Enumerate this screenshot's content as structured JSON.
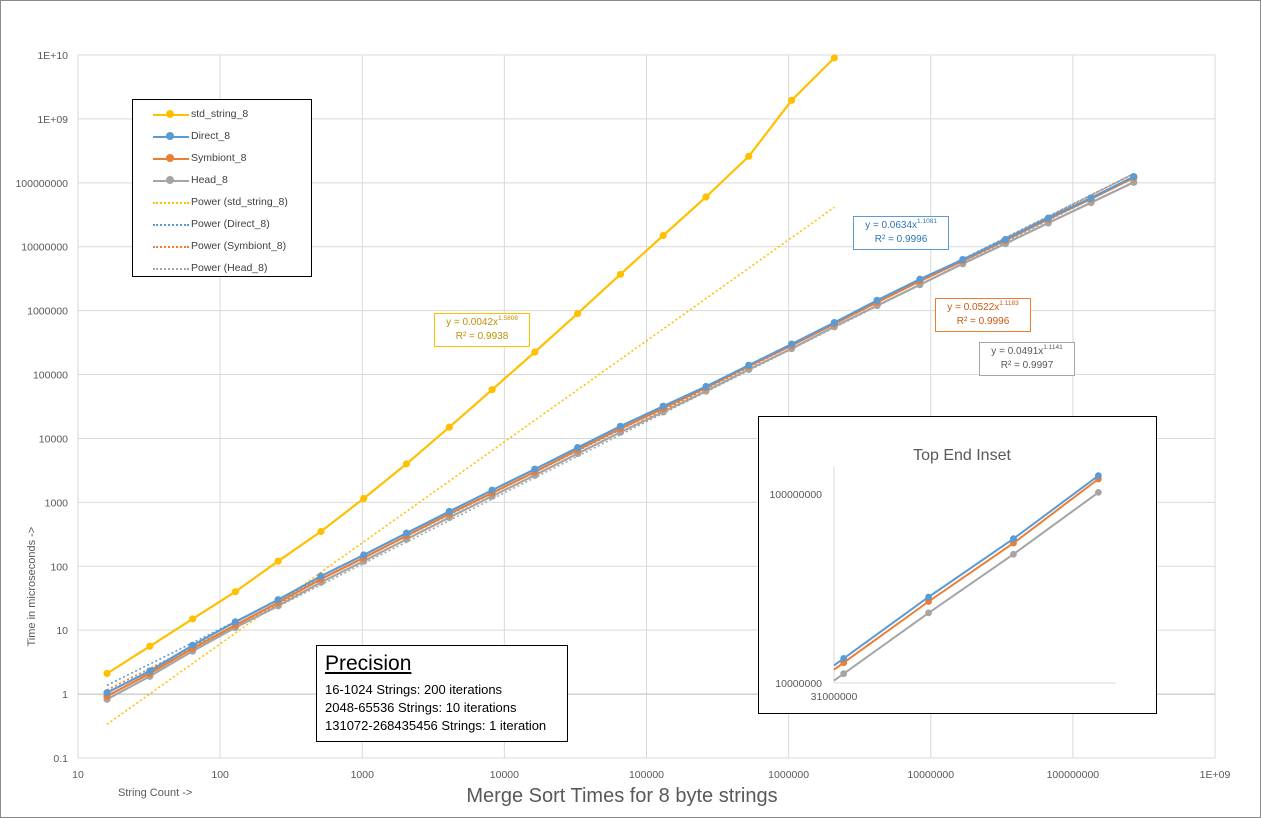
{
  "chart_data": {
    "type": "line",
    "title": "Merge Sort Times for 8 byte strings",
    "xlabel": "String Count ->",
    "ylabel": "Time in microseconds ->",
    "xscale": "log",
    "yscale": "log",
    "xlim": [
      10,
      1000000000
    ],
    "ylim": [
      0.1,
      10000000000
    ],
    "x_ticks": [
      "10",
      "100",
      "1000",
      "10000",
      "100000",
      "1000000",
      "10000000",
      "100000000",
      "1E+09"
    ],
    "y_ticks": [
      "0.1",
      "1",
      "10",
      "100",
      "1000",
      "10000",
      "100000",
      "1000000",
      "10000000",
      "100000000",
      "1E+09",
      "1E+10"
    ],
    "grid": true,
    "legend_position": "top-left",
    "x": [
      16,
      32,
      64,
      128,
      256,
      512,
      1024,
      2048,
      4096,
      8192,
      16384,
      32768,
      65536,
      131072,
      262144,
      524288,
      1048576,
      2097152,
      4194304,
      8388608,
      16777216,
      33554432,
      67108864,
      134217728,
      268435456
    ],
    "series": [
      {
        "name": "std_string_8",
        "color": "#ffc000",
        "values": [
          2.1,
          5.6,
          15,
          40,
          120,
          350,
          1150,
          4000,
          15000,
          58000,
          225000,
          900000,
          3700000,
          15000000,
          60000000,
          260000000,
          1950000000,
          9000000000,
          null,
          null,
          null,
          null,
          null,
          null,
          null
        ]
      },
      {
        "name": "Direct_8",
        "color": "#5b9bd5",
        "values": [
          1.05,
          2.3,
          5.8,
          13.5,
          30,
          70,
          150,
          330,
          720,
          1550,
          3300,
          7200,
          15500,
          32000,
          65000,
          140000,
          300000,
          650000,
          1450000,
          3100000,
          6300000,
          13000000,
          28000000,
          58000000,
          125000000
        ]
      },
      {
        "name": "Symbiont_8",
        "color": "#ed7d31",
        "values": [
          0.93,
          2.1,
          5.2,
          12,
          27,
          63,
          135,
          300,
          660,
          1400,
          3000,
          6600,
          14200,
          29500,
          62000,
          135000,
          285000,
          620000,
          1350000,
          2900000,
          6000000,
          12600000,
          27000000,
          56000000,
          120000000
        ]
      },
      {
        "name": "Head_8",
        "color": "#a5a5a5",
        "values": [
          0.83,
          1.9,
          4.7,
          11,
          24,
          56,
          120,
          265,
          580,
          1250,
          2650,
          5800,
          12500,
          26000,
          55000,
          120000,
          255000,
          560000,
          1200000,
          2550000,
          5400000,
          11200000,
          23500000,
          49000000,
          102000000
        ]
      }
    ],
    "trendlines": [
      {
        "name": "Power (std_string_8)",
        "series": "std_string_8",
        "a": 0.0042,
        "b": 1.5808,
        "equation": "y = 0.0042x",
        "exponent": "1.5808",
        "r2": "R² = 0.9938",
        "color": "#ffc000",
        "x_range": [
          16,
          2097152
        ]
      },
      {
        "name": "Power (Direct_8)",
        "series": "Direct_8",
        "a": 0.0634,
        "b": 1.1081,
        "equation": "y = 0.0634x",
        "exponent": "1.1081",
        "r2": "R² = 0.9996",
        "color": "#5b9bd5",
        "x_range": [
          16,
          268435456
        ]
      },
      {
        "name": "Power (Symbiont_8)",
        "series": "Symbiont_8",
        "a": 0.0522,
        "b": 1.1183,
        "equation": "y = 0.0522x",
        "exponent": "1.1183",
        "r2": "R² = 0.9996",
        "color": "#ed7d31",
        "x_range": [
          16,
          268435456
        ]
      },
      {
        "name": "Power (Head_8)",
        "series": "Head_8",
        "a": 0.0491,
        "b": 1.1141,
        "equation": "y = 0.0491x",
        "exponent": "1.1141",
        "r2": "R² = 0.9997",
        "color": "#a5a5a5",
        "x_range": [
          16,
          268435456
        ]
      }
    ],
    "inset": {
      "title": "Top End Inset",
      "x_tick": "31000000",
      "y_ticks": [
        "100000000",
        "10000000"
      ],
      "ylim": [
        10000000,
        100000000
      ],
      "x": [
        33554432,
        67108864,
        134217728,
        268435456
      ],
      "series": [
        {
          "name": "Direct_8",
          "color": "#5b9bd5",
          "values": [
            13500000,
            28500000,
            58000000,
            125000000
          ]
        },
        {
          "name": "Symbiont_8",
          "color": "#ed7d31",
          "values": [
            12800000,
            27000000,
            55000000,
            120000000
          ]
        },
        {
          "name": "Head_8",
          "color": "#a5a5a5",
          "values": [
            11200000,
            23500000,
            48000000,
            102000000
          ]
        }
      ]
    }
  },
  "precision": {
    "title": "Precision",
    "lines": [
      "16-1024 Strings: 200 iterations",
      "2048-65536  Strings: 10 iterations",
      "131072-268435456  Strings: 1 iteration"
    ]
  }
}
